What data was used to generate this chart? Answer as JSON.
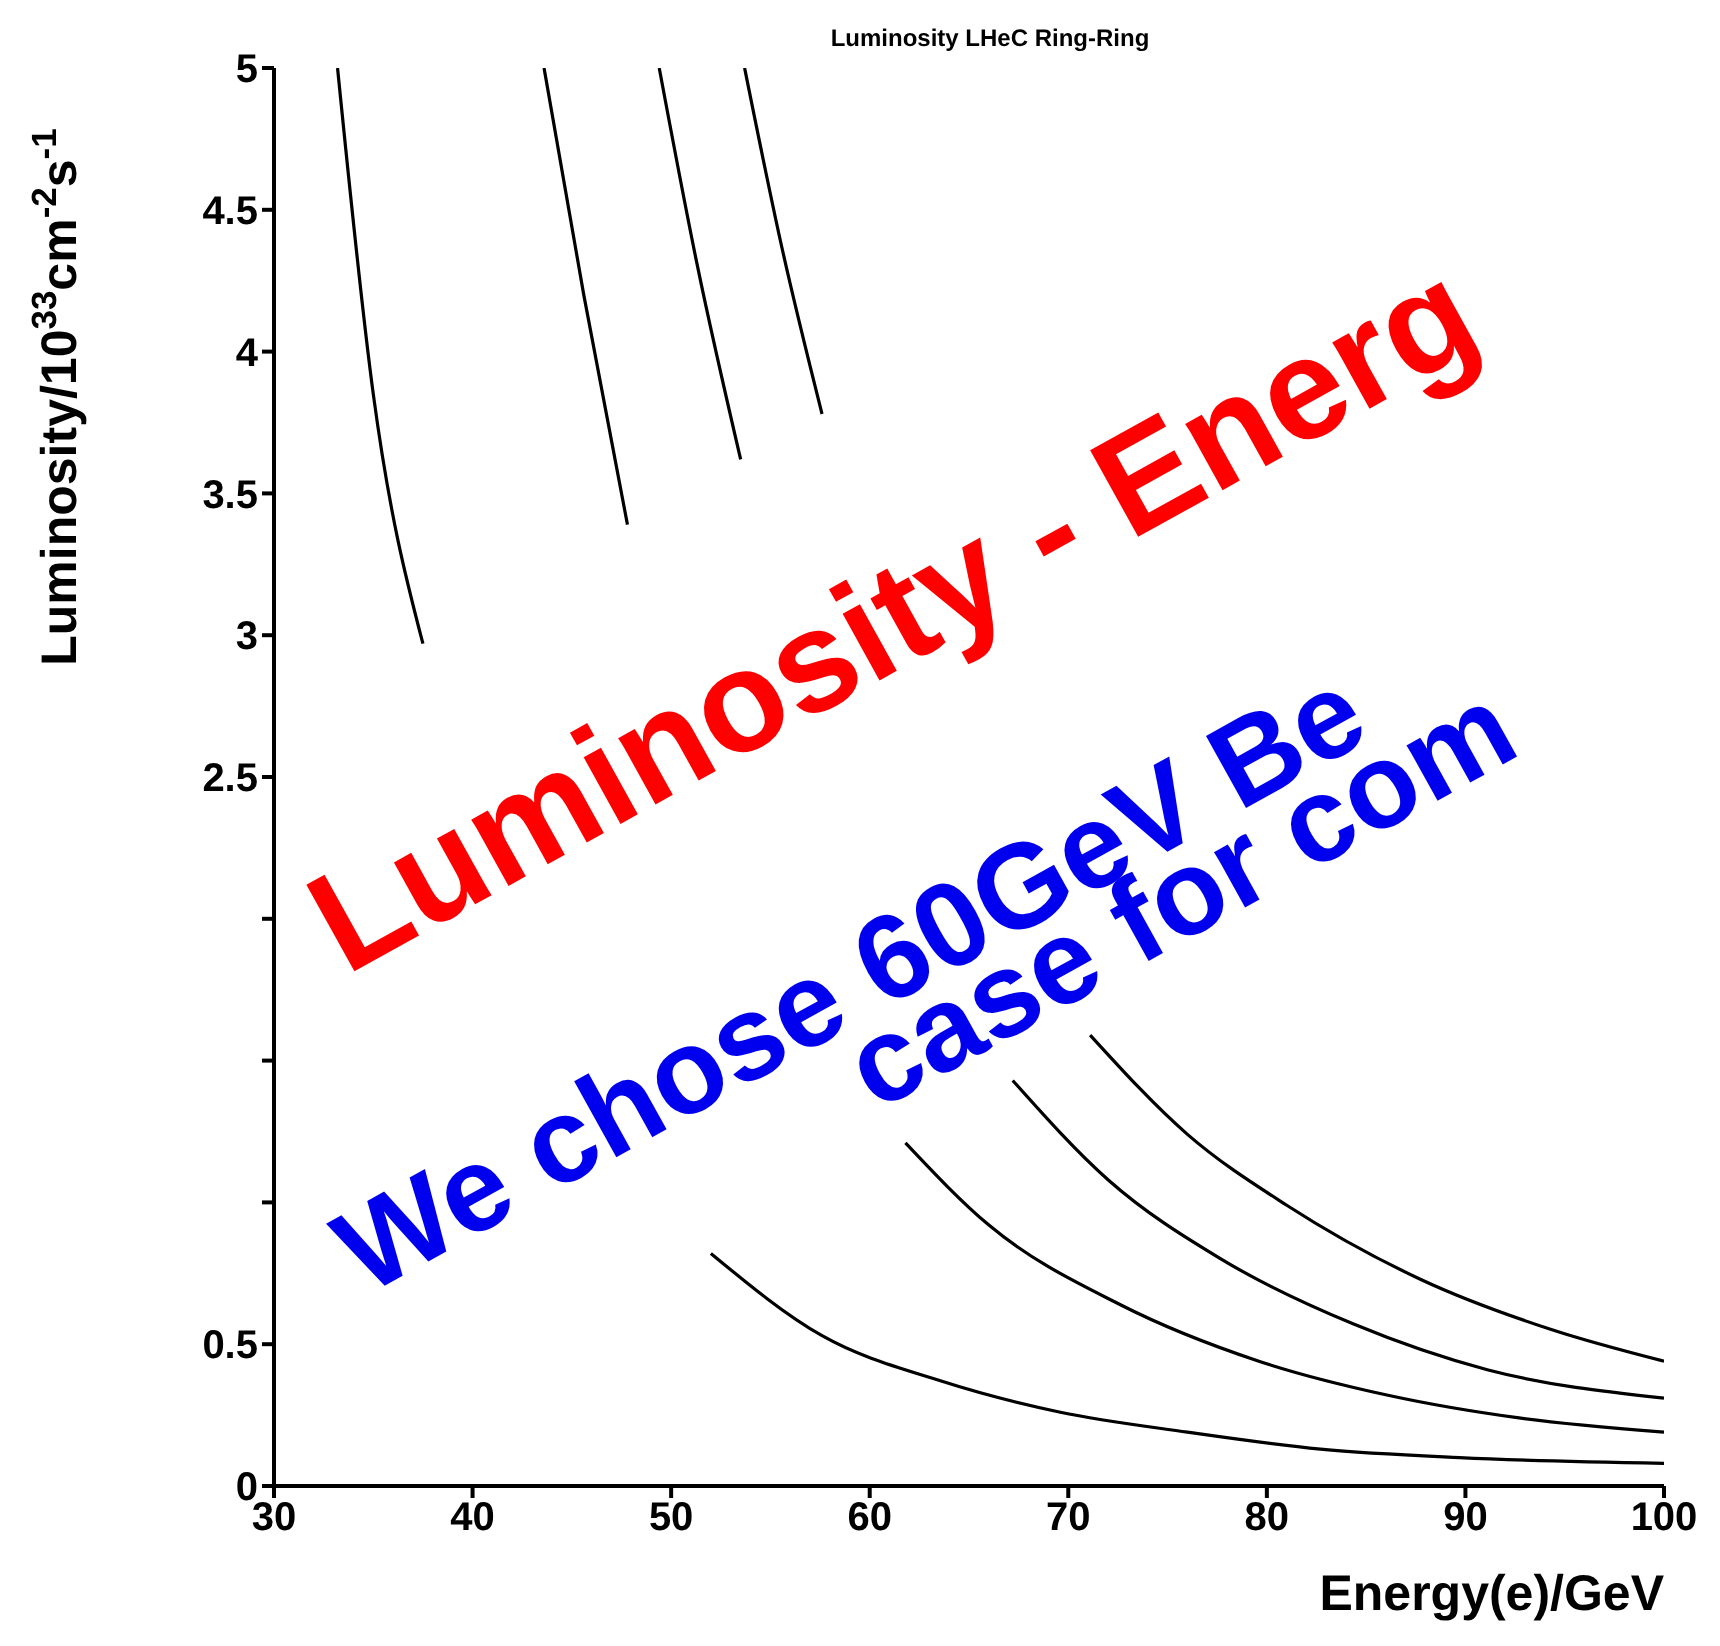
{
  "chart_data": {
    "type": "line",
    "title": "Luminosity  LHeC Ring-Ring",
    "xlabel": "Energy(e)/GeV",
    "ylabel": "Luminosity/10$^{33}$cm$^{-2}$s$^{-1}$",
    "xlim": [
      30,
      100
    ],
    "xticks": [
      30,
      40,
      50,
      60,
      70,
      80,
      90,
      100
    ],
    "ylim": [
      0,
      5
    ],
    "yticks": [
      0,
      0.5,
      {
        "value": 1,
        "label": null
      },
      {
        "value": 1.5,
        "label": null
      },
      {
        "value": 2,
        "label": null
      },
      2.5,
      3,
      3.5,
      4,
      4.5,
      5
    ],
    "marker": "none",
    "line_style": "solid",
    "series": [
      {
        "color": "#000000",
        "x": [
          33.2,
          35.0,
          37.5,
          45,
          52.0,
          57.6,
          63.6,
          69.6,
          76.0,
          82.7,
          89.7,
          100
        ],
        "values": [
          5,
          3.85,
          2.97,
          null,
          0.82,
          0.53,
          0.37,
          0.26,
          0.19,
          0.13,
          0.1,
          0.08
        ]
      },
      {
        "color": "#000000",
        "x": [
          43.6,
          45.6,
          47.8,
          55,
          61.8,
          66.0,
          72.6,
          79.6,
          86.1,
          92.7,
          100
        ],
        "values": [
          5,
          4.2,
          3.39,
          null,
          1.21,
          0.92,
          0.64,
          0.44,
          0.32,
          0.24,
          0.19
        ]
      },
      {
        "color": "#000000",
        "x": [
          49.4,
          51.3,
          53.5,
          60,
          67.2,
          72.0,
          77.7,
          84.4,
          91.1,
          100
        ],
        "values": [
          5,
          4.31,
          3.62,
          null,
          1.43,
          1.08,
          0.8,
          0.57,
          0.41,
          0.31
        ]
      },
      {
        "color": "#000000",
        "x": [
          53.7,
          55.6,
          57.6,
          64,
          71.1,
          76.0,
          81.0,
          87.7,
          94.4,
          100
        ],
        "values": [
          5,
          4.36,
          3.78,
          null,
          1.59,
          1.24,
          0.99,
          0.73,
          0.55,
          0.44
        ]
      }
    ],
    "annotations": [
      "Luminosity - Energ",
      "We chose 60GeV Be",
      "case for com"
    ]
  }
}
